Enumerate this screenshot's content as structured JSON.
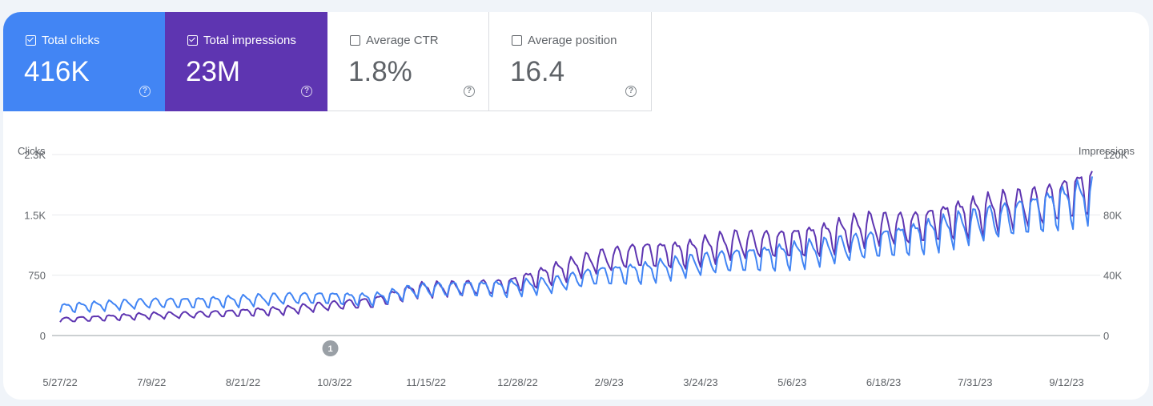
{
  "metrics": [
    {
      "label": "Total clicks",
      "value": "416K",
      "selected": true,
      "color": "#4285f4"
    },
    {
      "label": "Total impressions",
      "value": "23M",
      "selected": true,
      "color": "#5e35b1"
    },
    {
      "label": "Average CTR",
      "value": "1.8%",
      "selected": false,
      "color": "#ffffff"
    },
    {
      "label": "Average position",
      "value": "16.4",
      "selected": false,
      "color": "#ffffff"
    }
  ],
  "help_glyph": "?",
  "annotation": {
    "label": "1",
    "date": "10/1/22"
  },
  "chart_data": {
    "type": "line",
    "y_left_label": "Clicks",
    "y_right_label": "Impressions",
    "y_left_ticks": [
      "2.3K",
      "1.5K",
      "750",
      "0"
    ],
    "y_left_tick_values": [
      2250,
      1500,
      750,
      0
    ],
    "y_right_ticks": [
      "120K",
      "80K",
      "40K",
      "0"
    ],
    "y_right_tick_values": [
      120000,
      80000,
      40000,
      0
    ],
    "ylim_left": [
      0,
      2250
    ],
    "ylim_right": [
      0,
      120000
    ],
    "x_ticks": [
      "5/27/22",
      "7/9/22",
      "8/21/22",
      "10/3/22",
      "11/15/22",
      "12/28/22",
      "2/9/23",
      "3/24/23",
      "5/6/23",
      "6/18/23",
      "7/31/23",
      "9/12/23"
    ],
    "x_range": [
      "5/27/22",
      "9/24/23"
    ],
    "grid": true,
    "weekly_x": [
      "5/27/22",
      "6/17/22",
      "7/8/22",
      "7/29/22",
      "8/19/22",
      "9/9/22",
      "9/30/22",
      "10/21/22",
      "11/11/22",
      "12/2/22",
      "12/23/22",
      "1/13/23",
      "2/3/23",
      "2/24/23",
      "3/17/23",
      "4/7/23",
      "4/28/23",
      "5/19/23",
      "6/9/23",
      "6/30/23",
      "7/21/23",
      "8/11/23",
      "9/1/23",
      "9/22/23"
    ],
    "series": [
      {
        "name": "Clicks",
        "axis": "left",
        "color": "#4285f4",
        "values": [
          350,
          380,
          410,
          420,
          440,
          470,
          480,
          460,
          570,
          600,
          600,
          640,
          760,
          800,
          880,
          950,
          1000,
          1060,
          1140,
          1230,
          1340,
          1450,
          1580,
          1720
        ]
      },
      {
        "name": "Impressions",
        "axis": "right",
        "color": "#5e35b1",
        "values": [
          10500,
          12000,
          13500,
          14000,
          15500,
          17000,
          20000,
          22500,
          31000,
          32000,
          33500,
          42000,
          50000,
          55000,
          55500,
          61500,
          62000,
          65500,
          72000,
          72500,
          79000,
          84000,
          88000,
          98000
        ]
      }
    ]
  }
}
